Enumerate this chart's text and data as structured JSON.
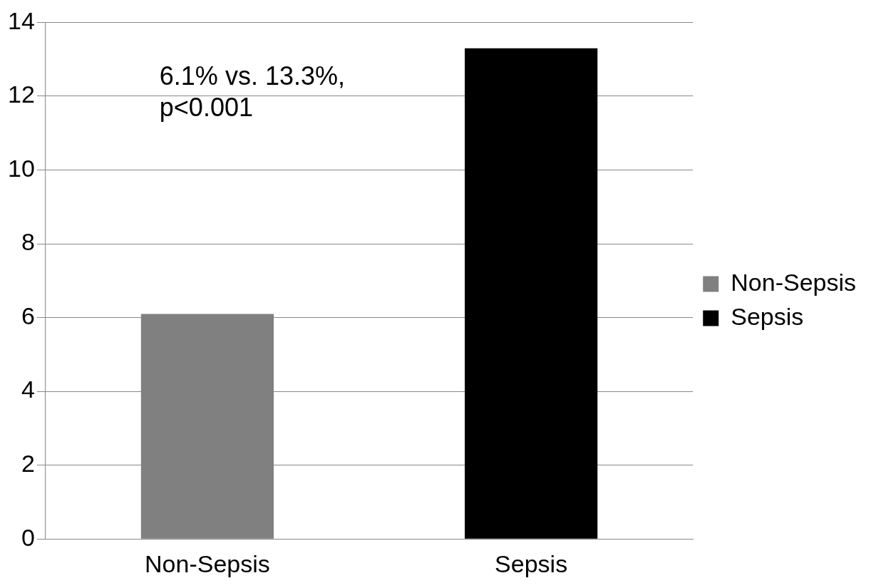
{
  "chart_data": {
    "type": "bar",
    "categories": [
      "Non-Sepsis",
      "Sepsis"
    ],
    "series": [
      {
        "name": "Non-Sepsis",
        "color": "#808080",
        "values": [
          6.1,
          null
        ]
      },
      {
        "name": "Sepsis",
        "color": "#000000",
        "values": [
          null,
          13.3
        ]
      }
    ],
    "ylim": [
      0,
      14
    ],
    "yticks": [
      0,
      2,
      4,
      6,
      8,
      10,
      12,
      14
    ],
    "grid": "y",
    "legend": "right",
    "annotations": [
      "6.1% vs. 13.3%, p<0.001"
    ]
  }
}
